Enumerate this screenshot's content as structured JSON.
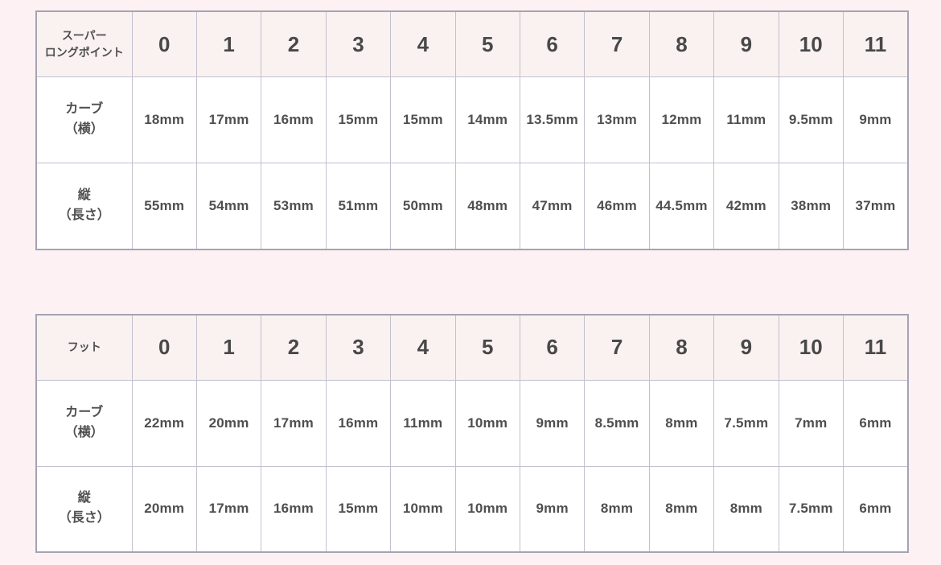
{
  "page": {
    "background_color": "#fdf1f3",
    "table_background_color": "#ffffff",
    "header_row_color": "#faf2f1",
    "grid_line_color": "#c2c0cf",
    "outer_border_color": "#a5a3b4",
    "text_color": "#4f4f4f"
  },
  "chart_data": [
    {
      "type": "table",
      "title": "スーパー\nロングポイント",
      "columns": [
        "0",
        "1",
        "2",
        "3",
        "4",
        "5",
        "6",
        "7",
        "8",
        "9",
        "10",
        "11"
      ],
      "rows": [
        {
          "label": "カーブ\n（横）",
          "values": [
            "18mm",
            "17mm",
            "16mm",
            "15mm",
            "15mm",
            "14mm",
            "13.5mm",
            "13mm",
            "12mm",
            "11mm",
            "9.5mm",
            "9mm"
          ]
        },
        {
          "label": "縦\n（長さ）",
          "values": [
            "55mm",
            "54mm",
            "53mm",
            "51mm",
            "50mm",
            "48mm",
            "47mm",
            "46mm",
            "44.5mm",
            "42mm",
            "38mm",
            "37mm"
          ]
        }
      ],
      "layout": {
        "grid": true,
        "header_position": "top-row-and-left-column"
      }
    },
    {
      "type": "table",
      "title": "フット",
      "columns": [
        "0",
        "1",
        "2",
        "3",
        "4",
        "5",
        "6",
        "7",
        "8",
        "9",
        "10",
        "11"
      ],
      "rows": [
        {
          "label": "カーブ\n（横）",
          "values": [
            "22mm",
            "20mm",
            "17mm",
            "16mm",
            "11mm",
            "10mm",
            "9mm",
            "8.5mm",
            "8mm",
            "7.5mm",
            "7mm",
            "6mm"
          ]
        },
        {
          "label": "縦\n（長さ）",
          "values": [
            "20mm",
            "17mm",
            "16mm",
            "15mm",
            "10mm",
            "10mm",
            "9mm",
            "8mm",
            "8mm",
            "8mm",
            "7.5mm",
            "6mm"
          ]
        }
      ],
      "layout": {
        "grid": true,
        "header_position": "top-row-and-left-column"
      }
    }
  ]
}
